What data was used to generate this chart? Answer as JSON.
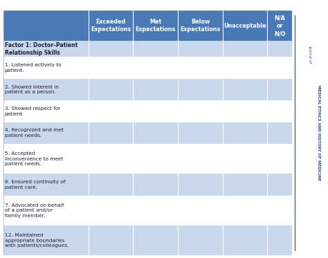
{
  "header_bg": "#4A7AB5",
  "header_text_color": "#FFFFFF",
  "row_bg_white": "#FFFFFF",
  "row_bg_blue": "#C9D8EC",
  "factor_bg": "#C9D8EC",
  "text_color": "#1a2035",
  "col_headers": [
    "Exceeded\nExpectations",
    "Met\nExpectations",
    "Below\nExpectations",
    "Unacceptable",
    "N/A\nor\nN/O"
  ],
  "row_label": "Factor 1: Doctor–Patient\nRelationship Skills",
  "rows": [
    "1. Listened actively to\npatient.",
    "2. Showed interest in\npatient as a person.",
    "3. Showed respect for\npatient",
    "4. Recognized and met\npatient needs.",
    "5. Accepted\ninconvenience to meet\npatient needs.",
    "6. Ensured continuity of\npatient care.",
    "7. Advocated on behalf\nof a patient and/or\nfamily member.",
    "12. Maintained\nappropriate boundaries\nwith patients/colleagues."
  ],
  "row_colors": [
    "white",
    "blue",
    "white",
    "blue",
    "white",
    "blue",
    "white",
    "blue"
  ],
  "sidebar_main": "MEDICAL ETHICS AND HISTORY OF MEDICINE",
  "sidebar_sub": "Journal of",
  "sidebar_color": "#2A4A8A"
}
